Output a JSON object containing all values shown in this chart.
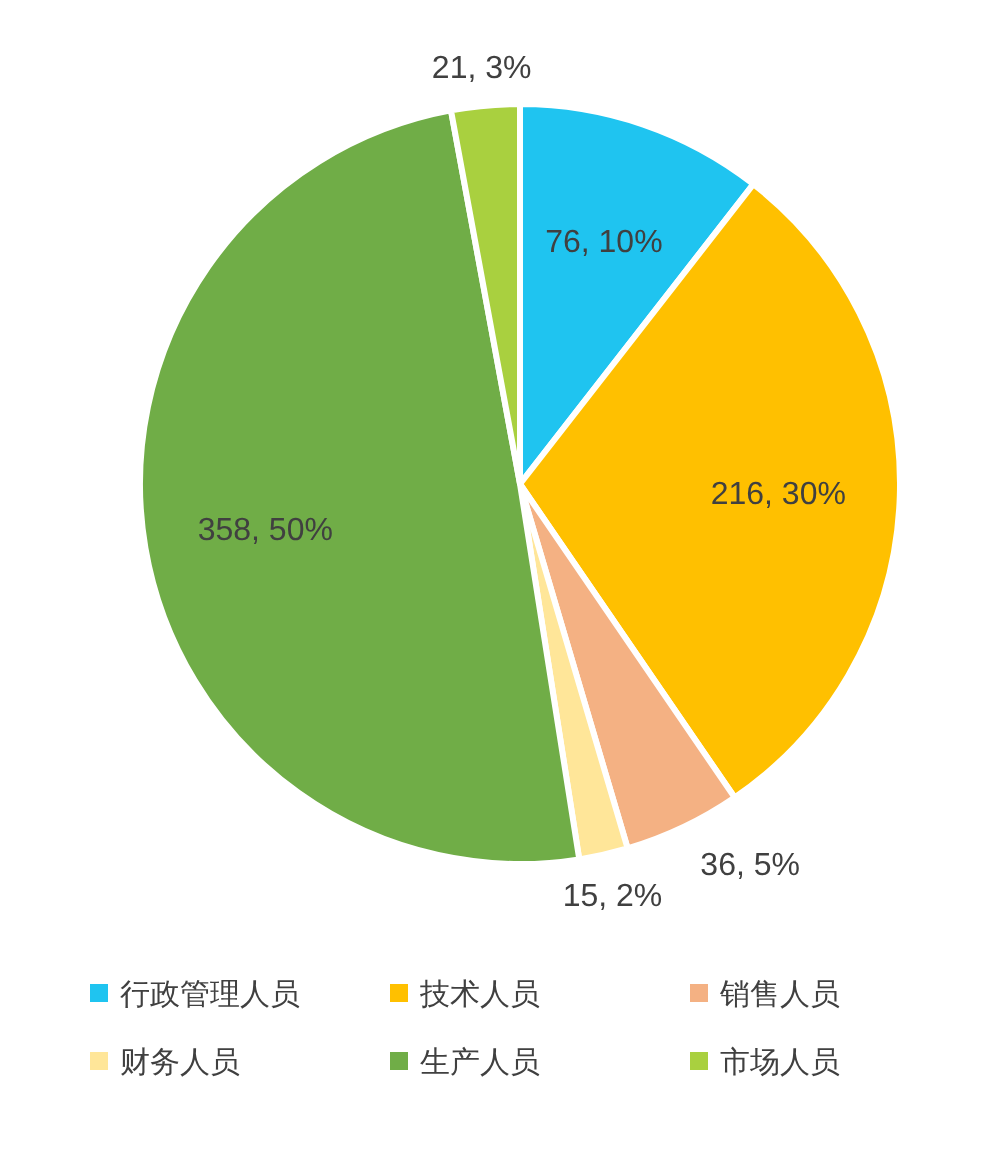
{
  "chart_data": {
    "type": "pie",
    "categories": [
      "行政管理人员",
      "技术人员",
      "销售人员",
      "财务人员",
      "生产人员",
      "市场人员"
    ],
    "values": [
      76,
      216,
      36,
      15,
      358,
      21
    ],
    "colors": [
      "#1fc4f0",
      "#ffc000",
      "#f4b183",
      "#ffe699",
      "#70ad47",
      "#a9d03f"
    ],
    "value_labels": [
      "76, 10%",
      "216, 30%",
      "36, 5%",
      "15, 2%",
      "358, 50%",
      "21, 3%"
    ],
    "legend": "bottom"
  }
}
